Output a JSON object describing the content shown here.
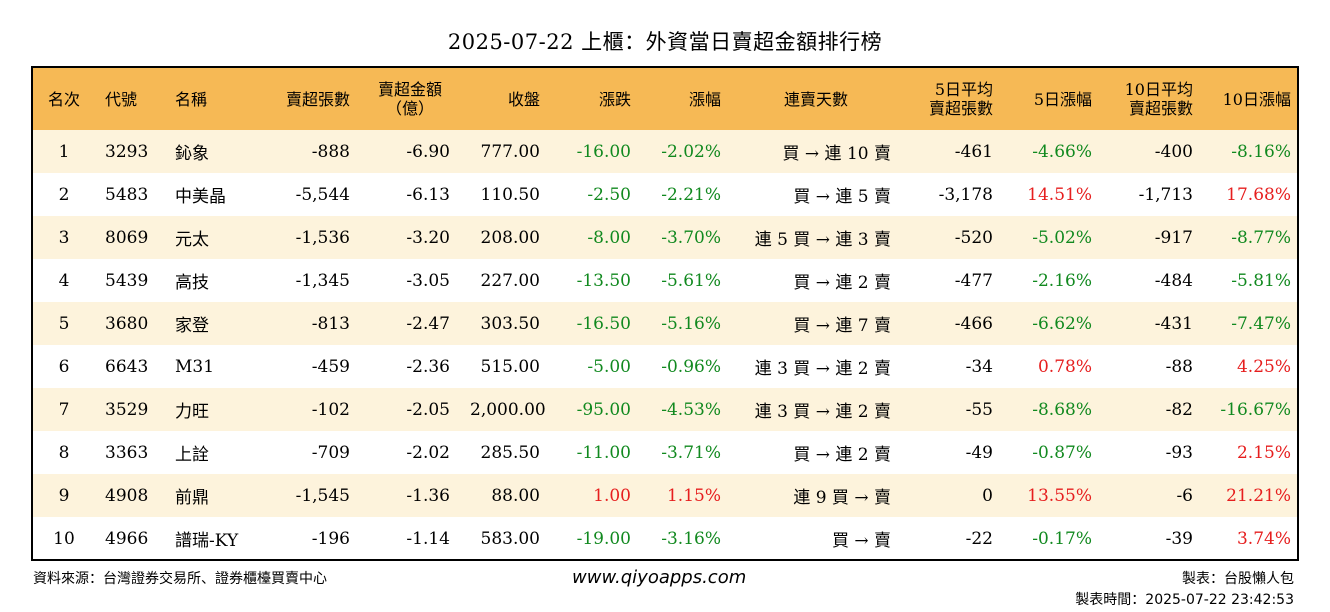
{
  "title": "2025-07-22 上櫃：外資當日賣超金額排行榜",
  "headers": [
    {
      "key": "rank",
      "text": "名次"
    },
    {
      "key": "code",
      "text": "代號"
    },
    {
      "key": "name",
      "text": "名稱"
    },
    {
      "key": "sell_shares",
      "text": "賣超張數"
    },
    {
      "key": "sell_amount",
      "text": "賣超金額\n（億）"
    },
    {
      "key": "close",
      "text": "收盤"
    },
    {
      "key": "change",
      "text": "漲跌"
    },
    {
      "key": "change_pct",
      "text": "漲幅"
    },
    {
      "key": "streak",
      "text": "連賣天數"
    },
    {
      "key": "avg5",
      "text": "5日平均\n賣超張數"
    },
    {
      "key": "pct5",
      "text": "5日漲幅"
    },
    {
      "key": "avg10",
      "text": "10日平均\n賣超張數"
    },
    {
      "key": "pct10",
      "text": "10日漲幅"
    }
  ],
  "rows": [
    {
      "rank": "1",
      "code": "3293",
      "name": "鈊象",
      "sell_shares": "-888",
      "sell_amount": "-6.90",
      "close": "777.00",
      "change": "-16.00",
      "change_pct": "-2.02%",
      "streak": "買 → 連 10 賣",
      "avg5": "-461",
      "pct5": "-4.66%",
      "avg10": "-400",
      "pct10": "-8.16%"
    },
    {
      "rank": "2",
      "code": "5483",
      "name": "中美晶",
      "sell_shares": "-5,544",
      "sell_amount": "-6.13",
      "close": "110.50",
      "change": "-2.50",
      "change_pct": "-2.21%",
      "streak": "買 → 連 5 賣",
      "avg5": "-3,178",
      "pct5": "14.51%",
      "avg10": "-1,713",
      "pct10": "17.68%"
    },
    {
      "rank": "3",
      "code": "8069",
      "name": "元太",
      "sell_shares": "-1,536",
      "sell_amount": "-3.20",
      "close": "208.00",
      "change": "-8.00",
      "change_pct": "-3.70%",
      "streak": "連 5 買 → 連 3 賣",
      "avg5": "-520",
      "pct5": "-5.02%",
      "avg10": "-917",
      "pct10": "-8.77%"
    },
    {
      "rank": "4",
      "code": "5439",
      "name": "高技",
      "sell_shares": "-1,345",
      "sell_amount": "-3.05",
      "close": "227.00",
      "change": "-13.50",
      "change_pct": "-5.61%",
      "streak": "買 → 連 2 賣",
      "avg5": "-477",
      "pct5": "-2.16%",
      "avg10": "-484",
      "pct10": "-5.81%"
    },
    {
      "rank": "5",
      "code": "3680",
      "name": "家登",
      "sell_shares": "-813",
      "sell_amount": "-2.47",
      "close": "303.50",
      "change": "-16.50",
      "change_pct": "-5.16%",
      "streak": "買 → 連 7 賣",
      "avg5": "-466",
      "pct5": "-6.62%",
      "avg10": "-431",
      "pct10": "-7.47%"
    },
    {
      "rank": "6",
      "code": "6643",
      "name": "M31",
      "sell_shares": "-459",
      "sell_amount": "-2.36",
      "close": "515.00",
      "change": "-5.00",
      "change_pct": "-0.96%",
      "streak": "連 3 買 → 連 2 賣",
      "avg5": "-34",
      "pct5": "0.78%",
      "avg10": "-88",
      "pct10": "4.25%"
    },
    {
      "rank": "7",
      "code": "3529",
      "name": "力旺",
      "sell_shares": "-102",
      "sell_amount": "-2.05",
      "close": "2,000.00",
      "change": "-95.00",
      "change_pct": "-4.53%",
      "streak": "連 3 買 → 連 2 賣",
      "avg5": "-55",
      "pct5": "-8.68%",
      "avg10": "-82",
      "pct10": "-16.67%"
    },
    {
      "rank": "8",
      "code": "3363",
      "name": "上詮",
      "sell_shares": "-709",
      "sell_amount": "-2.02",
      "close": "285.50",
      "change": "-11.00",
      "change_pct": "-3.71%",
      "streak": "買 → 連 2 賣",
      "avg5": "-49",
      "pct5": "-0.87%",
      "avg10": "-93",
      "pct10": "2.15%"
    },
    {
      "rank": "9",
      "code": "4908",
      "name": "前鼎",
      "sell_shares": "-1,545",
      "sell_amount": "-1.36",
      "close": "88.00",
      "change": "1.00",
      "change_pct": "1.15%",
      "streak": "連 9 買 → 賣",
      "avg5": "0",
      "pct5": "13.55%",
      "avg10": "-6",
      "pct10": "21.21%"
    },
    {
      "rank": "10",
      "code": "4966",
      "name": "譜瑞-KY",
      "sell_shares": "-196",
      "sell_amount": "-1.14",
      "close": "583.00",
      "change": "-19.00",
      "change_pct": "-3.16%",
      "streak": "買 → 賣",
      "avg5": "-22",
      "pct5": "-0.17%",
      "avg10": "-39",
      "pct10": "3.74%"
    }
  ],
  "colors": {
    "header_bg": "#f6b955",
    "odd_row_bg": "#fdf3dc",
    "up": "#e61e1e",
    "down": "#11891f"
  },
  "footer": {
    "source": "資料來源：台灣證券交易所、證券櫃檯買賣中心",
    "url": "www.qiyoapps.com",
    "maker": "製表：台股懶人包",
    "time": "製表時間：2025-07-22 23:42:53"
  }
}
